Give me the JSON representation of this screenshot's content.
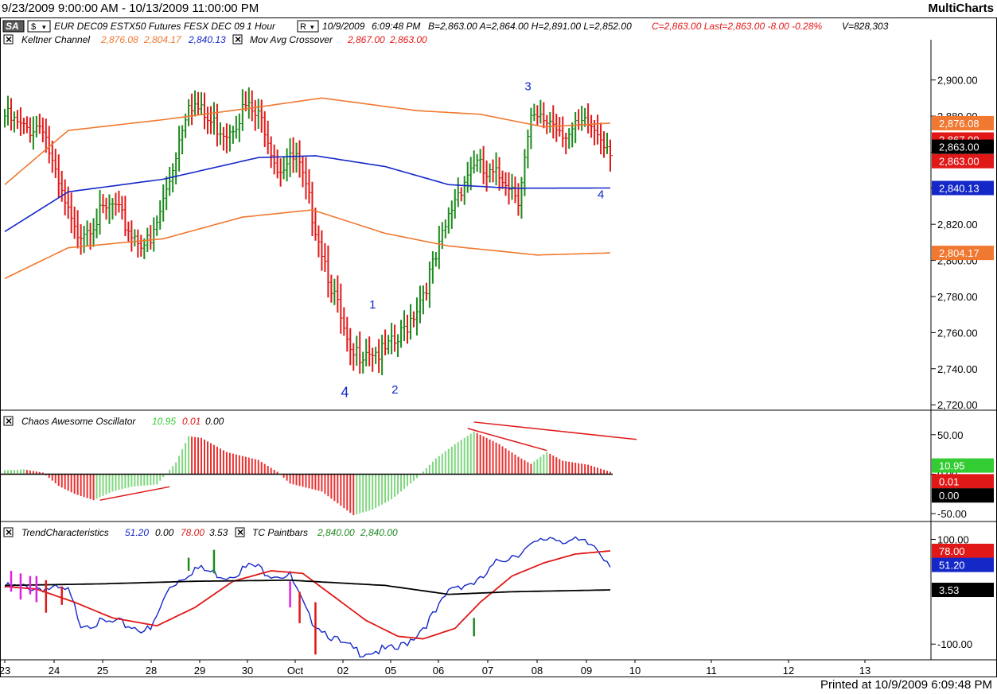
{
  "window": {
    "range": "9/23/2009 9:00:00 AM - 10/13/2009 11:00:00 PM",
    "brand": "MultiCharts",
    "printed": "Printed at 10/9/2009 6:09:48 PM"
  },
  "header": {
    "sa_label": "SA",
    "dollar_label": "$",
    "r_label": "R",
    "instrument": "EUR DEC09 ESTX50 Futures FESX DEC 09",
    "interval": "1 Hour",
    "time": "10/9/2009",
    "clock": "6:09:48 PM",
    "quote": "B=2,863.00  A=2,864.00  H=2,891.00  L=2,852.00",
    "change": "C=2,863.00  Last=2,863.00  -8.00  -0.28%",
    "volume": "V=828,303"
  },
  "studies": {
    "keltner": {
      "name": "Keltner Channel",
      "upper": "2,876.08",
      "lower": "2,804.17",
      "mid": "2,840.13"
    },
    "mac": {
      "name": "Mov Avg Crossover",
      "v1": "2,867.00",
      "v2": "2,863.00"
    },
    "ao": {
      "name": "Chaos Awesome Oscillator",
      "v1": "10.95",
      "v2": "0.01",
      "v3": "0.00"
    },
    "tc": {
      "name": "TrendCharacteristics",
      "v1": "51.20",
      "v2": "0.00",
      "v3": "78.00",
      "v4": "3.53"
    },
    "tcp": {
      "name": "TC Paintbars",
      "v1": "2,840.00",
      "v2": "2,840.00"
    }
  },
  "colors": {
    "up": "#1e8a1e",
    "down": "#e01818",
    "keltner_outer": "#f07830",
    "keltner_mid": "#1428c8",
    "ao_up": "#7fd67f",
    "ao_down": "#e83030",
    "tc_line": "#1428c8",
    "tc_signal": "#e01818",
    "magenta": "#e020e0"
  },
  "chart_data": [
    {
      "type": "bar",
      "title": "EUR DEC09 ESTX50 Futures FESX DEC 09",
      "xlabel": "",
      "ylabel": "",
      "ylim": [
        2717,
        2917
      ],
      "yticks": [
        "2,720.00",
        "2,740.00",
        "2,760.00",
        "2,780.00",
        "2,800.00",
        "2,820.00",
        "2,840.00",
        "2,860.00",
        "2,880.00",
        "2,900.00"
      ],
      "x_labels": [
        "23",
        "24",
        "25",
        "28",
        "29",
        "30",
        "Oct",
        "02",
        "05",
        "06",
        "07",
        "08",
        "09",
        "10",
        "11",
        "12",
        "13"
      ],
      "price_labels": [
        {
          "value": "2,876.08",
          "bg": "#f07830",
          "fg": "#ffffff",
          "y": 2876.08
        },
        {
          "value": "2,867.00",
          "bg": "#e01818",
          "fg": "#ffffff",
          "y": 2867
        },
        {
          "value": "2,863.00",
          "bg": "#000000",
          "fg": "#ffffff",
          "y": 2863
        },
        {
          "value": "2,863.00",
          "bg": "#e01818",
          "fg": "#ffffff",
          "y": 2855
        },
        {
          "value": "2,840.13",
          "bg": "#1428c8",
          "fg": "#ffffff",
          "y": 2840.13
        },
        {
          "value": "2,804.17",
          "bg": "#f07830",
          "fg": "#ffffff",
          "y": 2804.17
        }
      ],
      "wave_labels": [
        {
          "text": "3",
          "bar": 165,
          "y": 2897
        },
        {
          "text": "4",
          "bar": 188,
          "y": 2837
        },
        {
          "text": "1",
          "bar": 116,
          "y": 2776
        },
        {
          "text": "2",
          "bar": 123,
          "y": 2729
        },
        {
          "text": "4",
          "bar": 107,
          "y": 2727
        }
      ],
      "series": [
        {
          "series_name": "OHLC",
          "anchors_close": [
            [
              0,
              2880
            ],
            [
              6,
              2872
            ],
            [
              12,
              2876
            ],
            [
              16,
              2845
            ],
            [
              22,
              2815
            ],
            [
              28,
              2822
            ],
            [
              34,
              2830
            ],
            [
              40,
              2815
            ],
            [
              46,
              2808
            ],
            [
              52,
              2845
            ],
            [
              58,
              2890
            ],
            [
              64,
              2877
            ],
            [
              70,
              2872
            ],
            [
              76,
              2885
            ],
            [
              82,
              2875
            ],
            [
              86,
              2852
            ],
            [
              92,
              2856
            ],
            [
              98,
              2820
            ],
            [
              104,
              2780
            ],
            [
              109,
              2745
            ],
            [
              114,
              2752
            ],
            [
              119,
              2748
            ],
            [
              124,
              2755
            ],
            [
              130,
              2775
            ],
            [
              136,
              2800
            ],
            [
              142,
              2835
            ],
            [
              148,
              2855
            ],
            [
              152,
              2846
            ],
            [
              158,
              2846
            ],
            [
              162,
              2836
            ],
            [
              166,
              2876
            ],
            [
              172,
              2878
            ],
            [
              178,
              2870
            ],
            [
              184,
              2875
            ],
            [
              188,
              2870
            ],
            [
              191,
              2863
            ]
          ]
        },
        {
          "series_name": "Keltner Upper",
          "anchors": [
            [
              0,
              2842
            ],
            [
              20,
              2872
            ],
            [
              50,
              2878
            ],
            [
              80,
              2885
            ],
            [
              100,
              2890
            ],
            [
              130,
              2883
            ],
            [
              150,
              2881
            ],
            [
              170,
              2874
            ],
            [
              191,
              2876.08
            ]
          ]
        },
        {
          "series_name": "Keltner Mid",
          "anchors": [
            [
              0,
              2816
            ],
            [
              20,
              2838
            ],
            [
              50,
              2845
            ],
            [
              80,
              2857
            ],
            [
              98,
              2858
            ],
            [
              120,
              2852
            ],
            [
              140,
              2842
            ],
            [
              160,
              2840
            ],
            [
              191,
              2840.13
            ]
          ]
        },
        {
          "series_name": "Keltner Lower",
          "anchors": [
            [
              0,
              2790
            ],
            [
              20,
              2807
            ],
            [
              50,
              2812
            ],
            [
              75,
              2824
            ],
            [
              97,
              2828
            ],
            [
              120,
              2815
            ],
            [
              140,
              2808
            ],
            [
              168,
              2803
            ],
            [
              191,
              2804.17
            ]
          ]
        }
      ]
    },
    {
      "type": "bar",
      "title": "Chaos Awesome Oscillator",
      "xlabel": "",
      "ylabel": "",
      "ylim": [
        -60,
        75
      ],
      "yticks": [
        "50.00",
        "0.00",
        "-50.00"
      ],
      "price_labels": [
        {
          "value": "10.95",
          "bg": "#33cc33",
          "fg": "#ffffff",
          "y": 10.95
        },
        {
          "value": "0.01",
          "bg": "#e01818",
          "fg": "#ffffff",
          "y": -9
        },
        {
          "value": "0.00",
          "bg": "#000000",
          "fg": "#ffffff",
          "y": -27
        }
      ],
      "series": [
        {
          "series_name": "AO",
          "anchors": [
            [
              0,
              5
            ],
            [
              6,
              6
            ],
            [
              12,
              2
            ],
            [
              17,
              -15
            ],
            [
              22,
              -25
            ],
            [
              28,
              -33
            ],
            [
              34,
              -22
            ],
            [
              40,
              -16
            ],
            [
              48,
              -13
            ],
            [
              54,
              15
            ],
            [
              58,
              48
            ],
            [
              62,
              46
            ],
            [
              70,
              28
            ],
            [
              80,
              18
            ],
            [
              86,
              3
            ],
            [
              90,
              -12
            ],
            [
              100,
              -22
            ],
            [
              110,
              -52
            ],
            [
              116,
              -45
            ],
            [
              122,
              -32
            ],
            [
              130,
              -5
            ],
            [
              136,
              20
            ],
            [
              142,
              38
            ],
            [
              148,
              54
            ],
            [
              156,
              38
            ],
            [
              162,
              22
            ],
            [
              166,
              13
            ],
            [
              171,
              28
            ],
            [
              176,
              17
            ],
            [
              184,
              12
            ],
            [
              191,
              3
            ]
          ]
        }
      ]
    },
    {
      "type": "line",
      "title": "TrendCharacteristics",
      "xlabel": "",
      "ylabel": "",
      "ylim": [
        -130,
        125
      ],
      "yticks": [
        "100.00",
        "-100.00"
      ],
      "price_labels": [
        {
          "value": "78.00",
          "bg": "#e01818",
          "fg": "#ffffff",
          "y": 78
        },
        {
          "value": "51.20",
          "bg": "#1428c8",
          "fg": "#ffffff",
          "y": 51.2
        },
        {
          "value": "3.53",
          "bg": "#000000",
          "fg": "#ffffff",
          "y": 3.53
        }
      ],
      "series": [
        {
          "series_name": "TC",
          "anchors": [
            [
              0,
              8
            ],
            [
              12,
              8
            ],
            [
              20,
              0
            ],
            [
              24,
              -60
            ],
            [
              36,
              -60
            ],
            [
              46,
              -75
            ],
            [
              52,
              10
            ],
            [
              60,
              45
            ],
            [
              70,
              30
            ],
            [
              78,
              50
            ],
            [
              84,
              35
            ],
            [
              90,
              30
            ],
            [
              96,
              -50
            ],
            [
              106,
              -100
            ],
            [
              112,
              -115
            ],
            [
              124,
              -110
            ],
            [
              130,
              -80
            ],
            [
              136,
              -40
            ],
            [
              141,
              10
            ],
            [
              150,
              20
            ],
            [
              156,
              60
            ],
            [
              166,
              85
            ],
            [
              172,
              105
            ],
            [
              180,
              95
            ],
            [
              186,
              88
            ],
            [
              191,
              55
            ]
          ]
        },
        {
          "series_name": "Signal",
          "anchors": [
            [
              0,
              10
            ],
            [
              10,
              5
            ],
            [
              22,
              -20
            ],
            [
              34,
              -50
            ],
            [
              48,
              -65
            ],
            [
              60,
              -30
            ],
            [
              72,
              20
            ],
            [
              84,
              40
            ],
            [
              94,
              35
            ],
            [
              104,
              -10
            ],
            [
              114,
              -55
            ],
            [
              124,
              -85
            ],
            [
              132,
              -90
            ],
            [
              142,
              -70
            ],
            [
              150,
              -20
            ],
            [
              160,
              30
            ],
            [
              170,
              55
            ],
            [
              180,
              72
            ],
            [
              191,
              78
            ]
          ]
        },
        {
          "series_name": "Baseline",
          "anchors": [
            [
              0,
              12
            ],
            [
              30,
              15
            ],
            [
              60,
              20
            ],
            [
              90,
              22
            ],
            [
              120,
              12
            ],
            [
              140,
              -5
            ],
            [
              160,
              0
            ],
            [
              191,
              3.53
            ]
          ]
        }
      ]
    }
  ]
}
